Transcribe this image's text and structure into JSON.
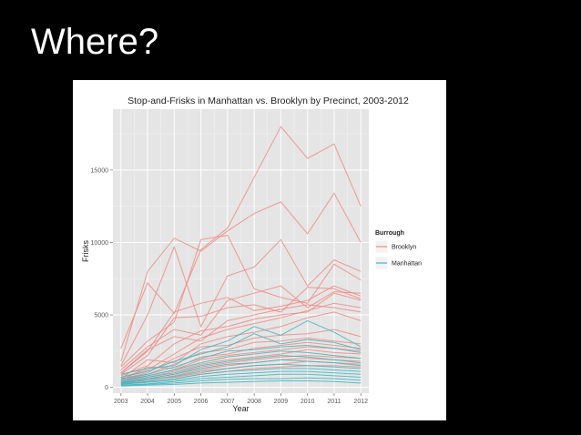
{
  "slide": {
    "title": "Where?"
  },
  "chart_data": {
    "type": "line",
    "title": "Stop-and-Frisks in Manhattan vs. Brooklyn by Precinct, 2003-2012",
    "xlabel": "Year",
    "ylabel": "Frisks",
    "x": [
      2003,
      2004,
      2005,
      2006,
      2007,
      2008,
      2009,
      2010,
      2011,
      2012
    ],
    "xlim": [
      2002.7,
      2012.3
    ],
    "ylim": [
      -400,
      19200
    ],
    "yticks": [
      0,
      5000,
      10000,
      15000
    ],
    "ytick_labels": [
      "0",
      "5000",
      "10000",
      "15000"
    ],
    "grid": true,
    "legend": {
      "title": "Burrough",
      "position": "right",
      "entries": [
        {
          "name": "Brooklyn",
          "color": "#f08a82"
        },
        {
          "name": "Manhattan",
          "color": "#3fb6c1"
        }
      ]
    },
    "series": [
      {
        "group": "Brooklyn",
        "values": [
          2700,
          7200,
          5100,
          9500,
          11000,
          14500,
          18000,
          15800,
          16800,
          12500
        ]
      },
      {
        "group": "Brooklyn",
        "values": [
          1800,
          8000,
          10300,
          9400,
          10800,
          12000,
          12800,
          10600,
          13400,
          10000
        ]
      },
      {
        "group": "Brooklyn",
        "values": [
          1500,
          5000,
          9700,
          4200,
          7700,
          8300,
          10200,
          7000,
          8800,
          8000
        ]
      },
      {
        "group": "Brooklyn",
        "values": [
          1400,
          3200,
          4500,
          10200,
          10500,
          6800,
          6200,
          5800,
          8500,
          7400
        ]
      },
      {
        "group": "Brooklyn",
        "values": [
          1200,
          2800,
          4000,
          3600,
          6000,
          6500,
          7000,
          5500,
          6600,
          6500
        ]
      },
      {
        "group": "Brooklyn",
        "values": [
          1000,
          2500,
          5200,
          5800,
          6200,
          5300,
          5600,
          6000,
          7000,
          6300
        ]
      },
      {
        "group": "Brooklyn",
        "values": [
          900,
          2200,
          4800,
          4900,
          5500,
          5700,
          5200,
          6900,
          6800,
          6100
        ]
      },
      {
        "group": "Brooklyn",
        "values": [
          800,
          1500,
          3000,
          3900,
          4200,
          4700,
          5000,
          5200,
          6500,
          6000
        ]
      },
      {
        "group": "Brooklyn",
        "values": [
          700,
          1200,
          2300,
          3400,
          4000,
          4400,
          4800,
          5300,
          5800,
          5500
        ]
      },
      {
        "group": "Brooklyn",
        "values": [
          600,
          1900,
          1700,
          3000,
          3500,
          3800,
          4200,
          4800,
          5200,
          4600
        ]
      },
      {
        "group": "Brooklyn",
        "values": [
          600,
          1000,
          2000,
          2800,
          2900,
          3400,
          3600,
          3700,
          4000,
          3500
        ]
      },
      {
        "group": "Brooklyn",
        "values": [
          500,
          900,
          1600,
          2400,
          2600,
          3100,
          3200,
          3400,
          3200,
          3000
        ]
      },
      {
        "group": "Brooklyn",
        "values": [
          500,
          1400,
          1300,
          2100,
          2300,
          2700,
          2900,
          3100,
          2900,
          2700
        ]
      },
      {
        "group": "Brooklyn",
        "values": [
          400,
          800,
          1200,
          1900,
          2200,
          2400,
          2600,
          2800,
          2700,
          2500
        ]
      },
      {
        "group": "Brooklyn",
        "values": [
          400,
          700,
          1100,
          1600,
          1900,
          2100,
          2300,
          2600,
          2400,
          2300
        ]
      },
      {
        "group": "Brooklyn",
        "values": [
          300,
          600,
          900,
          1400,
          1700,
          1900,
          2100,
          2200,
          2100,
          2000
        ]
      },
      {
        "group": "Brooklyn",
        "values": [
          300,
          500,
          800,
          1200,
          1500,
          1700,
          1900,
          2000,
          1900,
          1800
        ]
      },
      {
        "group": "Brooklyn",
        "values": [
          200,
          600,
          700,
          1000,
          1300,
          1500,
          1600,
          1800,
          1700,
          1600
        ]
      },
      {
        "group": "Brooklyn",
        "values": [
          200,
          400,
          600,
          900,
          1100,
          1300,
          1400,
          1500,
          1500,
          1400
        ]
      },
      {
        "group": "Brooklyn",
        "values": [
          1000,
          2600,
          3500,
          3200,
          4600,
          5000,
          5400,
          5700,
          5500,
          5200
        ]
      },
      {
        "group": "Manhattan",
        "values": [
          900,
          1300,
          1500,
          2600,
          3200,
          4200,
          3600,
          4600,
          3800,
          2800
        ]
      },
      {
        "group": "Manhattan",
        "values": [
          700,
          1100,
          1800,
          2300,
          2800,
          3700,
          3000,
          3300,
          3100,
          2600
        ]
      },
      {
        "group": "Manhattan",
        "values": [
          600,
          900,
          1400,
          2000,
          2500,
          2600,
          2800,
          2900,
          2700,
          2400
        ]
      },
      {
        "group": "Manhattan",
        "values": [
          500,
          800,
          1200,
          1700,
          2100,
          2300,
          2500,
          2400,
          2200,
          2000
        ]
      },
      {
        "group": "Manhattan",
        "values": [
          400,
          700,
          1000,
          1500,
          1800,
          2000,
          2200,
          2100,
          1900,
          1700
        ]
      },
      {
        "group": "Manhattan",
        "values": [
          350,
          600,
          900,
          1300,
          1600,
          1700,
          1900,
          1800,
          1700,
          1500
        ]
      },
      {
        "group": "Manhattan",
        "values": [
          300,
          500,
          750,
          1100,
          1300,
          1500,
          1600,
          1500,
          1400,
          1300
        ]
      },
      {
        "group": "Manhattan",
        "values": [
          250,
          400,
          600,
          900,
          1100,
          1200,
          1300,
          1300,
          1200,
          1100
        ]
      },
      {
        "group": "Manhattan",
        "values": [
          200,
          350,
          500,
          750,
          900,
          1000,
          1100,
          1100,
          1000,
          900
        ]
      },
      {
        "group": "Manhattan",
        "values": [
          150,
          250,
          400,
          600,
          700,
          800,
          900,
          900,
          800,
          700
        ]
      },
      {
        "group": "Manhattan",
        "values": [
          100,
          200,
          300,
          450,
          550,
          600,
          600,
          650,
          600,
          500
        ]
      },
      {
        "group": "Manhattan",
        "values": [
          100,
          150,
          200,
          300,
          350,
          400,
          450,
          450,
          400,
          300
        ]
      }
    ]
  }
}
